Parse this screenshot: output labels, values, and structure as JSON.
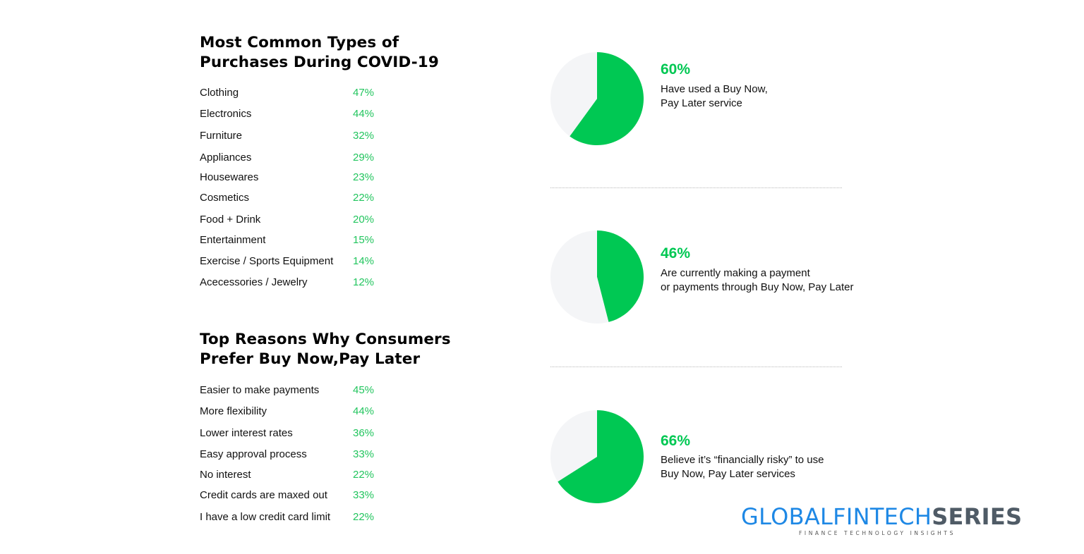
{
  "purchases": {
    "title_line1": "Most Common Types of",
    "title_line2": "Purchases During COVID-19",
    "items": [
      {
        "label": "Clothing",
        "value": "47%"
      },
      {
        "label": "Electronics",
        "value": "44%"
      },
      {
        "label": "Furniture",
        "value": "32%"
      },
      {
        "label": "Appliances",
        "value": "29%"
      },
      {
        "label": "Housewares",
        "value": "23%"
      },
      {
        "label": "Cosmetics",
        "value": "22%"
      },
      {
        "label": "Food + Drink",
        "value": "20%"
      },
      {
        "label": "Entertainment",
        "value": "15%"
      },
      {
        "label": "Exercise / Sports Equipment",
        "value": "14%"
      },
      {
        "label": "Acecessories / Jewelry",
        "value": "12%"
      }
    ]
  },
  "reasons": {
    "title_line1": "Top Reasons Why Consumers",
    "title_line2": "Prefer Buy Now,Pay Later",
    "items": [
      {
        "label": "Easier to make payments",
        "value": "45%"
      },
      {
        "label": "More flexibility",
        "value": "44%"
      },
      {
        "label": "Lower interest rates",
        "value": "36%"
      },
      {
        "label": "Easy approval process",
        "value": "33%"
      },
      {
        "label": "No interest",
        "value": "22%"
      },
      {
        "label": "Credit cards are maxed out",
        "value": "33%"
      },
      {
        "label": "I have a low credit card limit",
        "value": "22%"
      }
    ]
  },
  "stats": [
    {
      "value": "60%",
      "desc_line1": "Have used a Buy Now,",
      "desc_line2": "Pay Later service"
    },
    {
      "value": "46%",
      "desc_line1": "Are currently making a payment",
      "desc_line2": "or payments through Buy Now, Pay Later"
    },
    {
      "value": "66%",
      "desc_line1": "Believe it’s “financially risky” to use",
      "desc_line2": "Buy Now, Pay Later services"
    }
  ],
  "chart_data": [
    {
      "type": "pie",
      "slices": [
        {
          "value": 60,
          "color": "#00c853"
        },
        {
          "value": 40,
          "color": "#f4f5f7"
        }
      ]
    },
    {
      "type": "pie",
      "slices": [
        {
          "value": 46,
          "color": "#00c853"
        },
        {
          "value": 54,
          "color": "#f4f5f7"
        }
      ]
    },
    {
      "type": "pie",
      "slices": [
        {
          "value": 66,
          "color": "#00c853"
        },
        {
          "value": 34,
          "color": "#f4f5f7"
        }
      ]
    }
  ],
  "colors": {
    "accent_green": "#00c853",
    "list_value_green": "#22c55e",
    "pie_bg": "#f4f5f7",
    "logo_blue": "#1e88e5",
    "logo_gray": "#4f5b66"
  },
  "logo": {
    "part1": "GLOBALFINTECH",
    "part2": "SERIES",
    "tagline": "FINANCE TECHNOLOGY INSIGHTS"
  }
}
